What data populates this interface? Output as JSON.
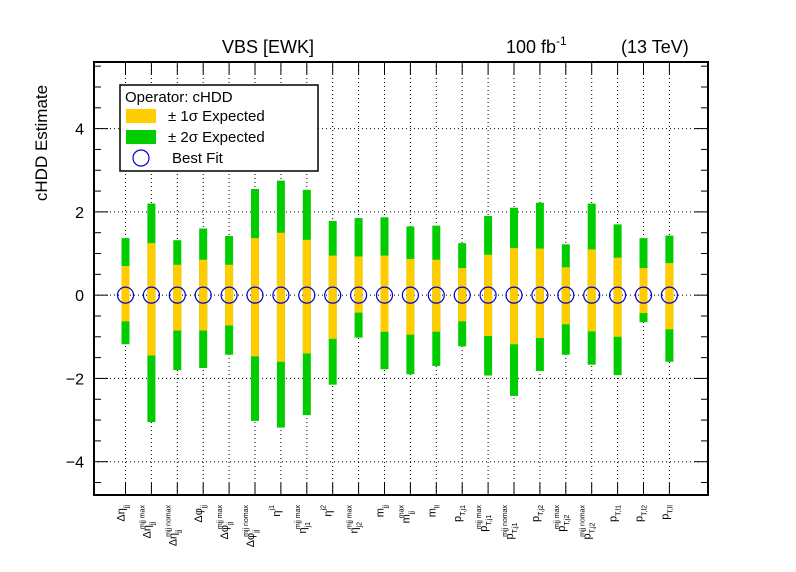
{
  "chart_data": {
    "type": "bar",
    "title": "VBS [EWK]",
    "lumi": "100 fb",
    "lumi_exp": "-1",
    "energy": "(13 TeV)",
    "ylabel": "cHDD Estimate",
    "xlabel": "",
    "ylim": [
      -4.8,
      5.6
    ],
    "yticks": [
      -4,
      -2,
      0,
      2,
      4
    ],
    "ytick_labels": [
      "−4",
      "−2",
      "0",
      "2",
      "4"
    ],
    "grid": true,
    "legend": {
      "placement": "top-left",
      "header": "Operator: cHDD",
      "entries": [
        {
          "label": "± 1σ Expected",
          "color": "#ffcc00",
          "kind": "box"
        },
        {
          "label": "± 2σ Expected",
          "color": "#00cc00",
          "kind": "box"
        },
        {
          "label": "Best Fit",
          "color": "#0000cc",
          "kind": "circle"
        }
      ]
    },
    "categories": [
      {
        "base": "Δη",
        "sub": "jj",
        "sup": ""
      },
      {
        "base": "Δη",
        "sub": "jj",
        "sup": "mjj max"
      },
      {
        "base": "Δη",
        "sub": "jj",
        "sup": "mjj nomax"
      },
      {
        "base": "Δφ",
        "sub": "jj",
        "sup": ""
      },
      {
        "base": "Δφ",
        "sub": "jj",
        "sup": "mjj max"
      },
      {
        "base": "Δφ",
        "sub": "jj",
        "sup": "mjj nomax"
      },
      {
        "base": "η",
        "sub": "",
        "sup": "j1"
      },
      {
        "base": "η",
        "sub": "j1",
        "sup": "mjj max"
      },
      {
        "base": "η",
        "sub": "",
        "sup": "j2"
      },
      {
        "base": "η",
        "sub": "j2",
        "sup": "mjj max"
      },
      {
        "base": "m",
        "sub": "jj",
        "sup": ""
      },
      {
        "base": "m",
        "sub": "jj",
        "sup": "max"
      },
      {
        "base": "m",
        "sub": "ll",
        "sup": ""
      },
      {
        "base": "p",
        "sub": "T,j1",
        "sup": ""
      },
      {
        "base": "p",
        "sub": "T,j1",
        "sup": "mjj max"
      },
      {
        "base": "p",
        "sub": "T,j1",
        "sup": "mjj nomax"
      },
      {
        "base": "p",
        "sub": "T,j2",
        "sup": ""
      },
      {
        "base": "p",
        "sub": "T,j2",
        "sup": "mjj max"
      },
      {
        "base": "p",
        "sub": "T,j2",
        "sup": "mjj nomax"
      },
      {
        "base": "p",
        "sub": "T,l1",
        "sup": ""
      },
      {
        "base": "p",
        "sub": "T,l2",
        "sup": ""
      },
      {
        "base": "p",
        "sub": "T,ll",
        "sup": ""
      }
    ],
    "series": [
      {
        "name": "± 2σ Expected",
        "color": "#00cc00",
        "low": [
          -1.18,
          -3.05,
          -1.8,
          -1.75,
          -1.43,
          -3.02,
          -3.18,
          -2.88,
          -2.15,
          -1.02,
          -1.78,
          -1.9,
          -1.7,
          -1.23,
          -1.93,
          -2.42,
          -1.82,
          -1.43,
          -1.67,
          -1.92,
          -0.65,
          -1.6
        ],
        "high": [
          1.37,
          2.2,
          1.32,
          1.6,
          1.42,
          2.55,
          2.75,
          2.53,
          1.78,
          1.85,
          1.87,
          1.65,
          1.67,
          1.25,
          1.9,
          2.1,
          2.22,
          1.22,
          2.2,
          1.7,
          1.37,
          1.43
        ]
      },
      {
        "name": "± 1σ Expected",
        "color": "#ffcc00",
        "low": [
          -0.63,
          -1.45,
          -0.85,
          -0.85,
          -0.73,
          -1.47,
          -1.6,
          -1.4,
          -1.05,
          -0.42,
          -0.88,
          -0.95,
          -0.88,
          -0.63,
          -0.98,
          -1.18,
          -1.03,
          -0.7,
          -0.87,
          -1.0,
          -0.43,
          -0.82
        ],
        "high": [
          0.7,
          1.25,
          0.73,
          0.85,
          0.73,
          1.37,
          1.5,
          1.33,
          0.95,
          0.93,
          0.95,
          0.87,
          0.85,
          0.65,
          0.97,
          1.13,
          1.12,
          0.67,
          1.1,
          0.9,
          0.65,
          0.77
        ]
      },
      {
        "name": "Best Fit",
        "color": "#0000cc",
        "values": [
          0,
          0,
          0,
          0,
          0,
          0,
          0,
          0,
          0,
          0,
          0,
          0,
          0,
          0,
          0,
          0,
          0,
          0,
          0,
          0,
          0,
          0
        ]
      }
    ]
  }
}
